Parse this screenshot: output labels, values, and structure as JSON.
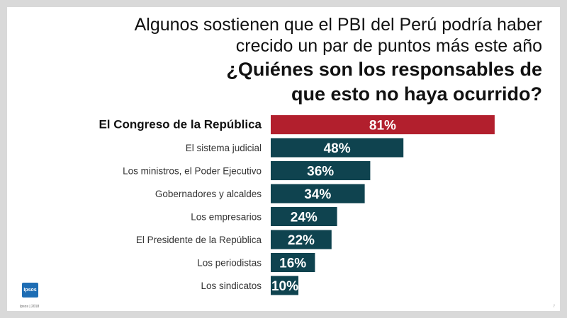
{
  "title": {
    "line1": "Algunos sostienen que el PBI del Perú podría haber",
    "line2": "crecido un par de puntos más este año",
    "question1": "¿Quiénes son los responsables de",
    "question2": "que esto no haya ocurrido?"
  },
  "footer": {
    "brand": "Ipsos",
    "source": "Ipsos | 2018",
    "page": "7"
  },
  "colors": {
    "highlight": "#b21f2d",
    "bar": "#0f434f",
    "label_text": "#ffffff"
  },
  "chart_data": {
    "type": "bar",
    "orientation": "horizontal",
    "categories": [
      "El Congreso de la República",
      "El sistema judicial",
      "Los ministros, el Poder Ejecutivo",
      "Gobernadores y alcaldes",
      "Los empresarios",
      "El Presidente de la República",
      "Los periodistas",
      "Los sindicatos"
    ],
    "values": [
      81,
      48,
      36,
      34,
      24,
      22,
      16,
      10
    ],
    "value_labels": [
      "81%",
      "48%",
      "36%",
      "34%",
      "24%",
      "22%",
      "16%",
      "10%"
    ],
    "highlight_index": 0,
    "xlim": [
      0,
      100
    ],
    "grid": false,
    "legend": "none"
  }
}
